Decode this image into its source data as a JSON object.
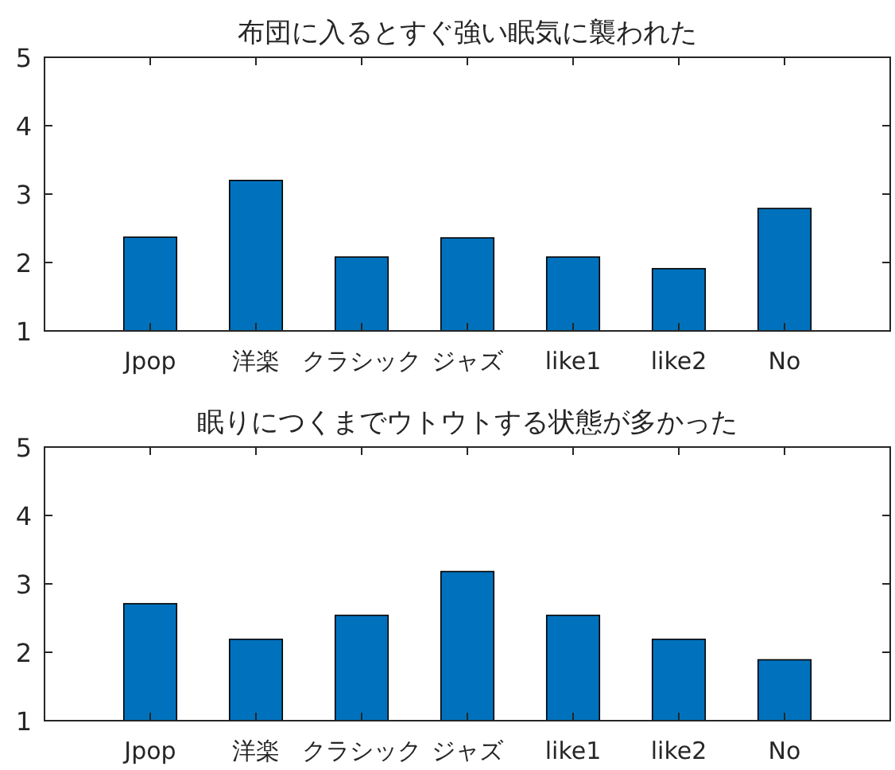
{
  "chart_data": [
    {
      "type": "bar",
      "title": "布団に入るとすぐ強い眠気に襲われた",
      "categories": [
        "Jpop",
        "洋楽",
        "クラシック",
        "ジャズ",
        "like1",
        "like2",
        "No"
      ],
      "values": [
        2.37,
        3.2,
        2.08,
        2.36,
        2.08,
        1.91,
        2.79
      ],
      "color": "#0072bd",
      "ylim": [
        1,
        5
      ],
      "yticks": [
        1,
        2,
        3,
        4,
        5
      ]
    },
    {
      "type": "bar",
      "title": "眠りにつくまでウトウトする状態が多かった",
      "categories": [
        "Jpop",
        "洋楽",
        "クラシック",
        "ジャズ",
        "like1",
        "like2",
        "No"
      ],
      "values": [
        2.71,
        2.19,
        2.54,
        3.18,
        2.54,
        2.19,
        1.89
      ],
      "color": "#0072bd",
      "ylim": [
        1,
        5
      ],
      "yticks": [
        1,
        2,
        3,
        4,
        5
      ]
    }
  ]
}
